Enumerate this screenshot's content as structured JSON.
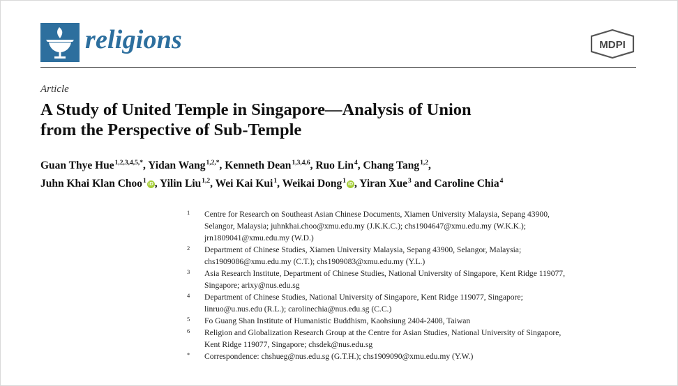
{
  "header": {
    "journal_name": "religions",
    "publisher": "MDPI",
    "brand_color": "#2d6f9e",
    "logo_icon": "chalice-flame-icon",
    "publisher_icon": "mdpi-hexagon-logo"
  },
  "article": {
    "type": "Article",
    "title_line1": "A Study of United Temple in Singapore—Analysis of Union",
    "title_line2": "from the Perspective of Sub-Temple"
  },
  "authors": [
    {
      "name": "Guan Thye Hue",
      "sup": "1,2,3,4,5,*",
      "sep": ","
    },
    {
      "name": "Yidan Wang",
      "sup": "1,2,*",
      "sep": ","
    },
    {
      "name": "Kenneth Dean",
      "sup": "1,3,4,6",
      "sep": ","
    },
    {
      "name": "Ruo Lin",
      "sup": "4",
      "sep": ","
    },
    {
      "name": "Chang Tang",
      "sup": "1,2",
      "sep": ","
    },
    {
      "name": "Juhn Khai Klan Choo",
      "sup": "1",
      "orcid": true,
      "sep": ","
    },
    {
      "name": "Yilin Liu",
      "sup": "1,2",
      "sep": ","
    },
    {
      "name": "Wei Kai Kui",
      "sup": "1",
      "sep": ","
    },
    {
      "name": "Weikai Dong",
      "sup": "1",
      "orcid": true,
      "sep": ","
    },
    {
      "name": "Yiran Xue",
      "sup": "3",
      "sep": " and"
    },
    {
      "name": "Caroline Chia",
      "sup": "4",
      "sep": ""
    }
  ],
  "orcid_color": "#a6ce39",
  "affiliations": [
    {
      "num": "1",
      "lines": [
        "Centre for Research on Southeast Asian Chinese Documents, Xiamen University Malaysia, Sepang 43900,",
        "Selangor, Malaysia; juhnkhai.choo@xmu.edu.my (J.K.K.C.); chs1904647@xmu.edu.my (W.K.K.);",
        "jrn1809041@xmu.edu.my (W.D.)"
      ]
    },
    {
      "num": "2",
      "lines": [
        "Department of Chinese Studies, Xiamen University Malaysia, Sepang 43900, Selangor, Malaysia;",
        "chs1909086@xmu.edu.my (C.T.); chs1909083@xmu.edu.my (Y.L.)"
      ]
    },
    {
      "num": "3",
      "lines": [
        "Asia Research Institute, Department of Chinese Studies, National University of Singapore, Kent Ridge 119077,",
        "Singapore; arixy@nus.edu.sg"
      ]
    },
    {
      "num": "4",
      "lines": [
        "Department of Chinese Studies, National University of Singapore, Kent Ridge 119077, Singapore;",
        "linruo@u.nus.edu (R.L.); carolinechia@nus.edu.sg (C.C.)"
      ]
    },
    {
      "num": "5",
      "lines": [
        "Fo Guang Shan Institute of Humanistic Buddhism, Kaohsiung 2404-2408, Taiwan"
      ]
    },
    {
      "num": "6",
      "lines": [
        "Religion and Globalization Research Group at the Centre for Asian Studies, National University of Singapore,",
        "Kent Ridge 119077, Singapore; chsdek@nus.edu.sg"
      ]
    },
    {
      "num": "*",
      "lines": [
        "Correspondence: chshueg@nus.edu.sg (G.T.H.); chs1909090@xmu.edu.my (Y.W.)"
      ]
    }
  ]
}
